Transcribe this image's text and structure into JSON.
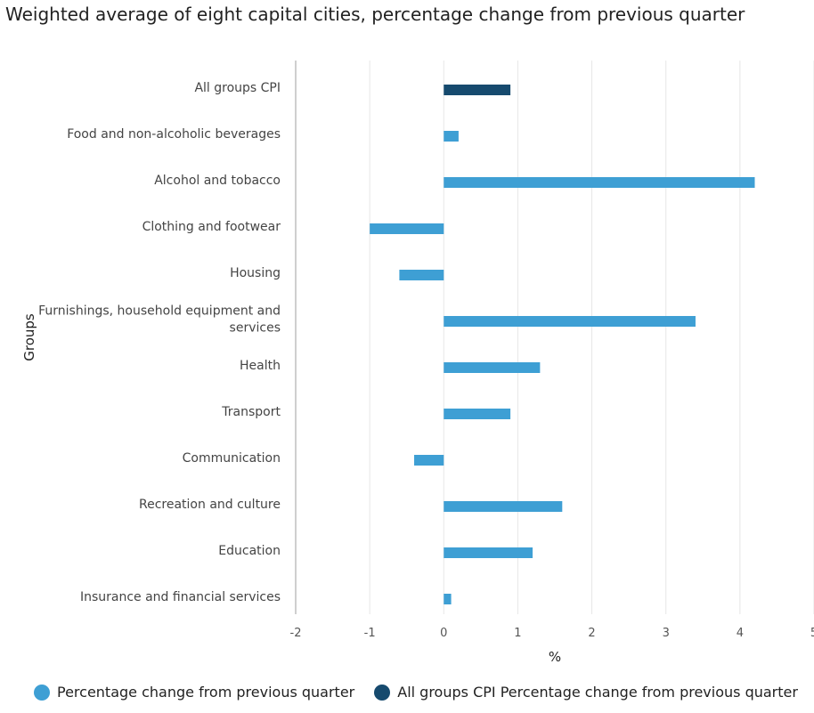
{
  "chart_data": {
    "type": "bar",
    "orientation": "horizontal",
    "title": "Weighted average of eight capital cities, percentage change from previous quarter",
    "xlabel": "%",
    "ylabel": "Groups",
    "xlim": [
      -2,
      5
    ],
    "xticks": [
      -2,
      -1,
      0,
      1,
      2,
      3,
      4,
      5
    ],
    "grid": true,
    "legend_position": "bottom",
    "categories": [
      "All groups CPI",
      "Food and non-alcoholic beverages",
      "Alcohol and tobacco",
      "Clothing and footwear",
      "Housing",
      "Furnishings, household equipment and services",
      "Health",
      "Transport",
      "Communication",
      "Recreation and culture",
      "Education",
      "Insurance and financial services"
    ],
    "series": [
      {
        "name": "Percentage change from previous quarter",
        "color": "#3e9fd4",
        "values": [
          null,
          0.2,
          4.2,
          -1.0,
          -0.6,
          3.4,
          1.3,
          0.9,
          -0.4,
          1.6,
          1.2,
          0.1
        ]
      },
      {
        "name": "All groups CPI Percentage change from previous quarter",
        "color": "#164a6e",
        "values": [
          0.9,
          null,
          null,
          null,
          null,
          null,
          null,
          null,
          null,
          null,
          null,
          null
        ]
      }
    ]
  }
}
